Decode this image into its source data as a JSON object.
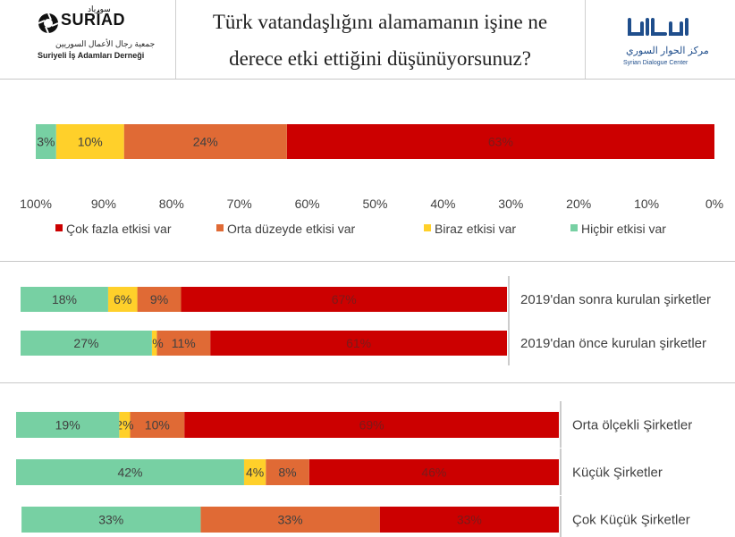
{
  "header": {
    "title_line1": "Türk vatandaşlığını alamamanın işine ne",
    "title_line2": "derece etki ettiğini düşünüyorsunuz?",
    "left_logo": {
      "brand": "SURİAD",
      "arabic_top": "سورياد",
      "arabic_sub": "جمعية رجال الأعمال السوريين",
      "subtitle": "Suriyeli İş Adamları Derneği"
    },
    "right_logo": {
      "arabic": "مركز الحوار السوري",
      "subtitle": "Syrian Dialogue Center"
    }
  },
  "colors": {
    "cok": "#cc0000",
    "orta": "#e06a35",
    "biraz": "#ffd02a",
    "hicbir": "#77d0a3",
    "text": "#404040"
  },
  "chart_data": [
    {
      "type": "bar",
      "orientation": "horizontal-stacked-100",
      "x_reversed": true,
      "xlim": [
        0,
        100
      ],
      "x_ticks": [
        "100%",
        "90%",
        "80%",
        "70%",
        "60%",
        "50%",
        "40%",
        "30%",
        "20%",
        "10%",
        "0%"
      ],
      "legend_position": "bottom",
      "categories": [
        ""
      ],
      "series": [
        {
          "name": "Çok fazla etkisi var",
          "values": [
            63
          ],
          "labels": [
            "63%"
          ]
        },
        {
          "name": "Orta düzeyde etkisi var",
          "values": [
            24
          ],
          "labels": [
            "24%"
          ]
        },
        {
          "name": "Biraz etkisi var",
          "values": [
            10
          ],
          "labels": [
            "10%"
          ]
        },
        {
          "name": "Hiçbir etkisi var",
          "values": [
            3
          ],
          "labels": [
            "3%"
          ]
        }
      ]
    },
    {
      "type": "bar",
      "orientation": "horizontal-stacked-100",
      "x_reversed": true,
      "categories": [
        "2019'dan sonra kurulan şirketler",
        "2019'dan önce kurulan şirketler"
      ],
      "series": [
        {
          "name": "Çok fazla etkisi var",
          "values": [
            67,
            61
          ],
          "labels": [
            "67%",
            "61%"
          ]
        },
        {
          "name": "Orta düzeyde etkisi var",
          "values": [
            9,
            11
          ],
          "labels": [
            "9%",
            "11%"
          ]
        },
        {
          "name": "Biraz etkisi var",
          "values": [
            6,
            1
          ],
          "labels": [
            "6%",
            "1%"
          ]
        },
        {
          "name": "Hiçbir etkisi var",
          "values": [
            18,
            27
          ],
          "labels": [
            "18%",
            "27%"
          ]
        }
      ]
    },
    {
      "type": "bar",
      "orientation": "horizontal-stacked-100",
      "x_reversed": true,
      "categories": [
        "Orta ölçekli Şirketler",
        "Küçük Şirketler",
        "Çok Küçük Şirketler"
      ],
      "series": [
        {
          "name": "Çok fazla etkisi var",
          "values": [
            69,
            46,
            33
          ],
          "labels": [
            "69%",
            "46%",
            "33%"
          ]
        },
        {
          "name": "Orta düzeyde etkisi var",
          "values": [
            10,
            8,
            33
          ],
          "labels": [
            "10%",
            "8%",
            "33%"
          ]
        },
        {
          "name": "Biraz etkisi var",
          "values": [
            2,
            4,
            0
          ],
          "labels": [
            "2%",
            "4%",
            ""
          ]
        },
        {
          "name": "Hiçbir etkisi var",
          "values": [
            19,
            42,
            33
          ],
          "labels": [
            "19%",
            "42%",
            "33%"
          ]
        }
      ]
    }
  ]
}
